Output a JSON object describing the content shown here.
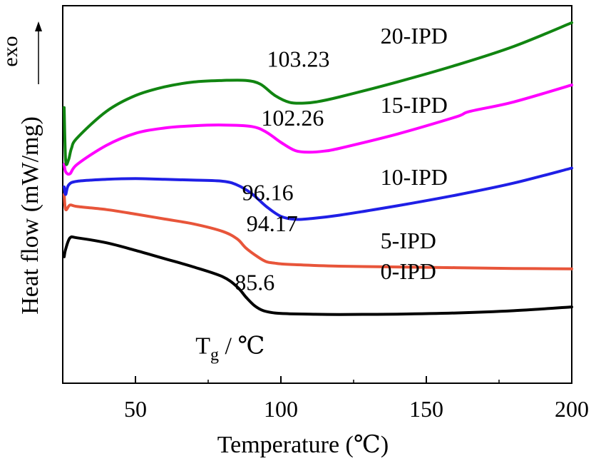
{
  "chart_data": {
    "type": "line",
    "title": "",
    "xlabel": "Temperature (℃)",
    "ylabel": "Heat flow (mW/mg)",
    "exo_label": "exo",
    "xlim": [
      25,
      200
    ],
    "ylim": [
      0,
      10
    ],
    "x_ticks": [
      "50",
      "100",
      "150",
      "200"
    ],
    "x_tick_values": [
      50,
      100,
      150,
      200
    ],
    "y_ticks_labeled": false,
    "grid": false,
    "legend": "labels next to curves",
    "annotation": {
      "text": "Tg / ℃",
      "x": 98,
      "y": 1.05
    },
    "series": [
      {
        "name": "0-IPD",
        "color": "#000000",
        "x": [
          25.5,
          26,
          27.5,
          30,
          40,
          50,
          60,
          70,
          80,
          85,
          88,
          91,
          94,
          98,
          103,
          110,
          120,
          140,
          160,
          180,
          200
        ],
        "y": [
          3.35,
          3.55,
          3.85,
          3.85,
          3.72,
          3.52,
          3.3,
          3.08,
          2.82,
          2.55,
          2.28,
          2.05,
          1.92,
          1.86,
          1.84,
          1.83,
          1.82,
          1.83,
          1.86,
          1.92,
          2.02
        ],
        "tg_label": "85.6",
        "label_xy": [
          96,
          2.68
        ],
        "tg_xy": [
          91,
          2.47
        ]
      },
      {
        "name": "5-IPD",
        "color": "#e8553a",
        "x": [
          25.5,
          26,
          27.5,
          30,
          40,
          50,
          60,
          70,
          80,
          85,
          88,
          92,
          95,
          98,
          100,
          105,
          120,
          140,
          160,
          180,
          200
        ],
        "y": [
          5.0,
          4.6,
          4.72,
          4.68,
          4.6,
          4.48,
          4.35,
          4.22,
          4.02,
          3.82,
          3.58,
          3.35,
          3.22,
          3.18,
          3.16,
          3.14,
          3.1,
          3.08,
          3.06,
          3.04,
          3.03
        ],
        "tg_label": "94.17",
        "label_xy": [
          96,
          3.5
        ],
        "tg_xy": [
          97,
          4.03
        ]
      },
      {
        "name": "10-IPD",
        "color": "#1f1fe6",
        "x": [
          25.5,
          26,
          27,
          30,
          40,
          50,
          60,
          70,
          80,
          85,
          90,
          95,
          100,
          105,
          110,
          120,
          140,
          160,
          180,
          200
        ],
        "y": [
          5.2,
          5.0,
          5.25,
          5.35,
          5.4,
          5.42,
          5.4,
          5.38,
          5.35,
          5.25,
          5.02,
          4.68,
          4.42,
          4.34,
          4.36,
          4.45,
          4.7,
          4.98,
          5.3,
          5.7
        ],
        "tg_label": "96.16",
        "label_xy": [
          96,
          5.18
        ],
        "tg_xy": [
          95.5,
          4.85
        ]
      },
      {
        "name": "15-IPD",
        "color": "#ff00ff",
        "x": [
          25.5,
          26,
          27.5,
          30,
          40,
          50,
          60,
          70,
          80,
          90,
          95,
          100,
          105,
          110,
          115,
          120,
          140,
          160,
          165,
          180,
          200
        ],
        "y": [
          5.8,
          5.6,
          5.55,
          5.8,
          6.3,
          6.62,
          6.76,
          6.82,
          6.84,
          6.8,
          6.65,
          6.38,
          6.16,
          6.12,
          6.15,
          6.22,
          6.6,
          7.05,
          7.2,
          7.45,
          7.9
        ],
        "tg_label": "102.26",
        "label_xy": [
          96,
          7.09
        ],
        "tg_xy": [
          104,
          6.82
        ]
      },
      {
        "name": "20-IPD",
        "color": "#118511",
        "x": [
          25.5,
          26,
          27,
          28,
          30,
          40,
          50,
          60,
          70,
          80,
          88,
          93,
          98,
          103,
          108,
          112,
          120,
          140,
          160,
          180,
          200
        ],
        "y": [
          7.3,
          5.9,
          5.92,
          6.22,
          6.5,
          7.2,
          7.62,
          7.85,
          7.98,
          8.02,
          8.02,
          7.92,
          7.62,
          7.44,
          7.42,
          7.45,
          7.58,
          7.98,
          8.42,
          8.92,
          9.55
        ],
        "tg_label": "103.23",
        "label_xy": [
          96,
          8.92
        ],
        "tg_xy": [
          106,
          8.38
        ]
      }
    ]
  }
}
